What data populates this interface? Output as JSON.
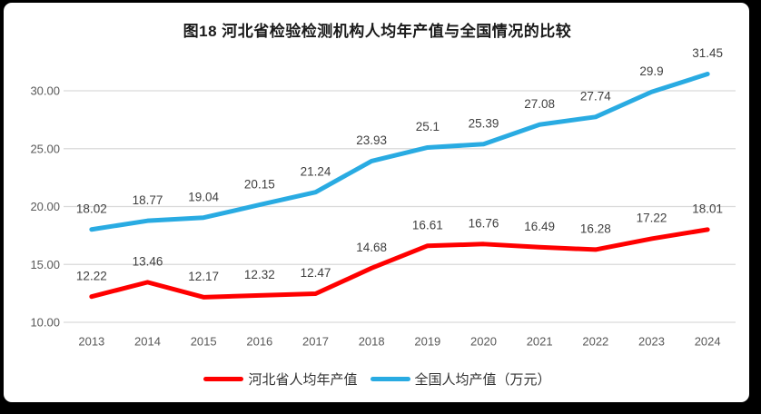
{
  "frame": {
    "outer_background": "#000000",
    "panel_background": "#ffffff"
  },
  "chart_data": {
    "type": "line",
    "title": "图18 河北省检验检测机构人均年产值与全国情况的比较",
    "categories": [
      "2013",
      "2014",
      "2015",
      "2016",
      "2017",
      "2018",
      "2019",
      "2020",
      "2021",
      "2022",
      "2023",
      "2024"
    ],
    "series": [
      {
        "name": "河北省人均年产值",
        "color": "#FF0000",
        "values": [
          12.22,
          13.46,
          12.17,
          12.32,
          12.47,
          14.68,
          16.61,
          16.76,
          16.49,
          16.28,
          17.22,
          18.01
        ]
      },
      {
        "name": "全国人均产值（万元）",
        "color": "#29ABE2",
        "values": [
          18.02,
          18.77,
          19.04,
          20.15,
          21.24,
          23.93,
          25.1,
          25.39,
          27.08,
          27.74,
          29.9,
          31.45
        ]
      }
    ],
    "xlabel": "",
    "ylabel": "",
    "ylim": [
      10,
      32
    ],
    "ytick_values": [
      10,
      15,
      20,
      25,
      30
    ],
    "ytick_labels": [
      "10.00",
      "15.00",
      "20.00",
      "25.00",
      "30.00"
    ],
    "grid": "horizontal",
    "gridline_color": "#D9D9D9",
    "axis_label_color": "#595959",
    "data_label_color": "#3f3f3f",
    "data_labels": true,
    "legend_position": "bottom"
  }
}
